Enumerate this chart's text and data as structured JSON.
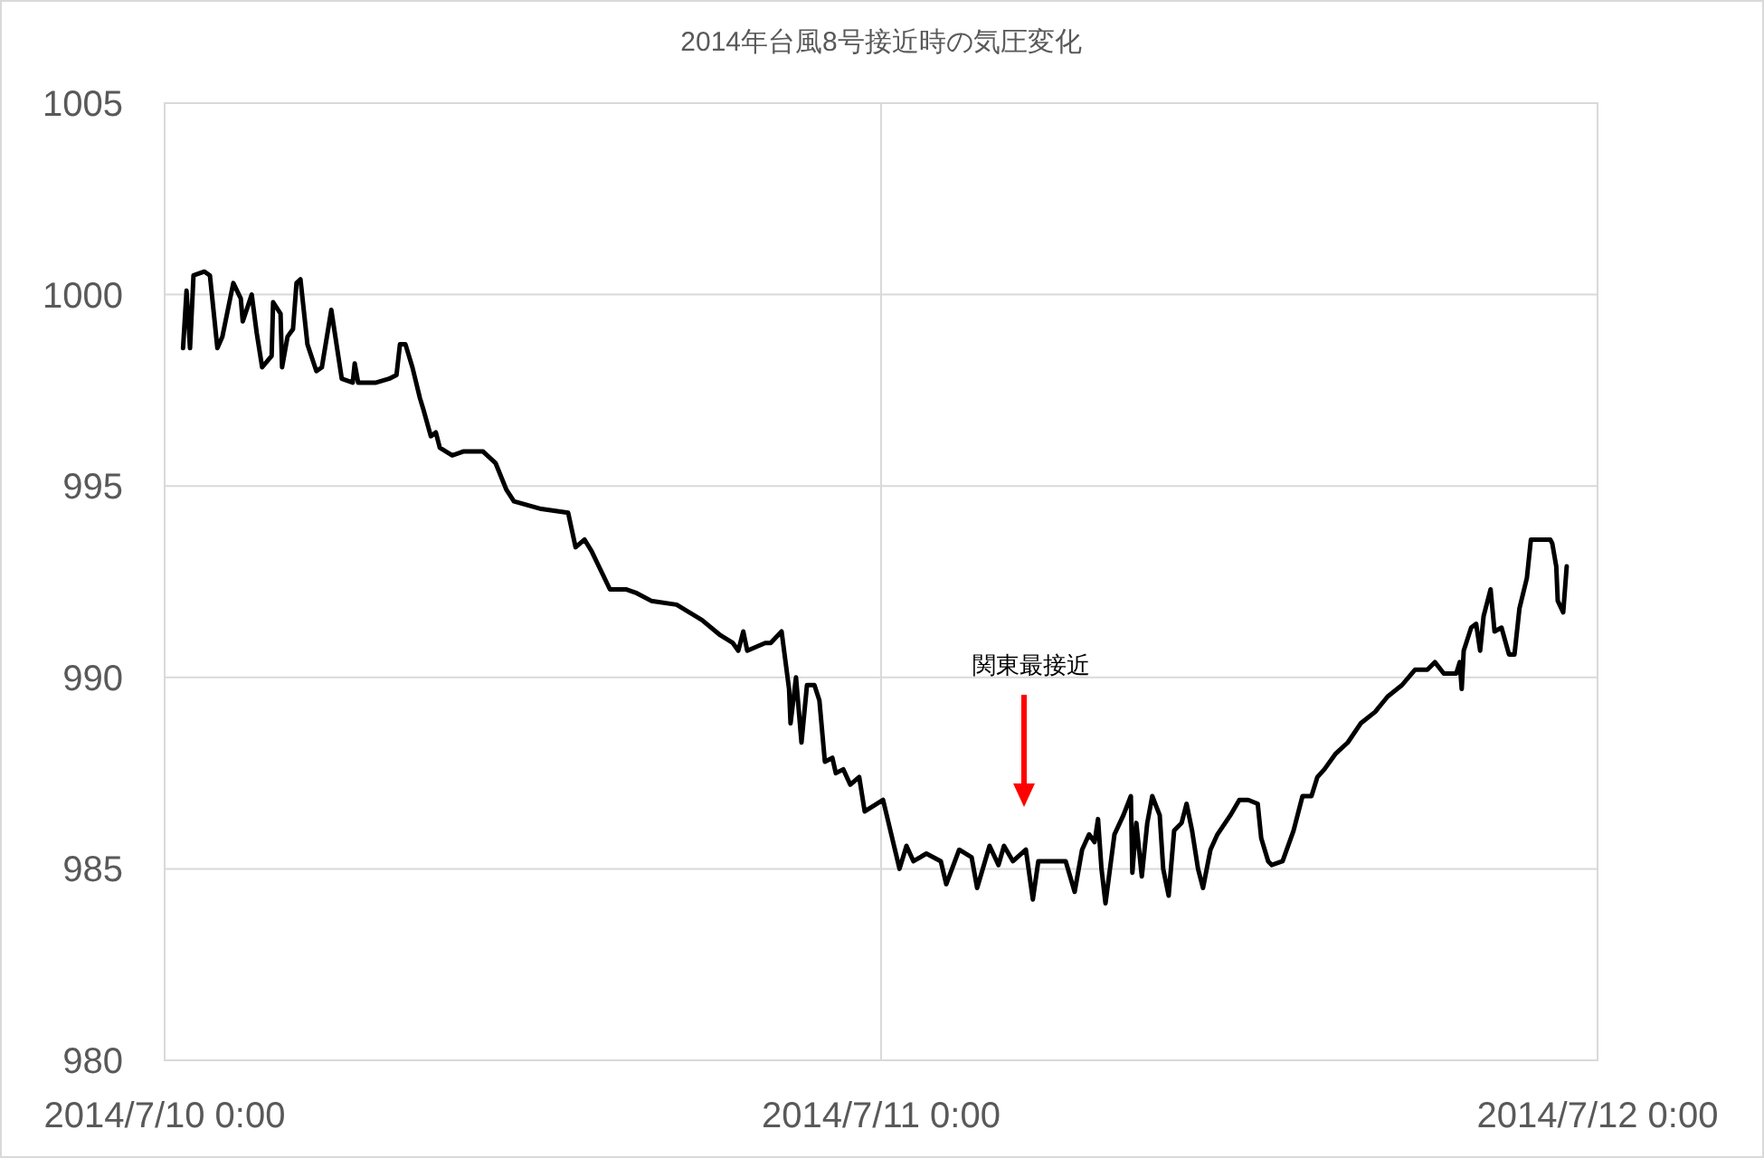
{
  "chart_data": {
    "type": "line",
    "title": "2014年台風8号接近時の気圧変化",
    "xlim": [
      "2014-07-10T00:00",
      "2014-07-12T00:00"
    ],
    "xticks": [
      {
        "value": "2014-07-10T00:00",
        "label": "2014/7/10 0:00"
      },
      {
        "value": "2014-07-11T00:00",
        "label": "2014/7/11 0:00"
      },
      {
        "value": "2014-07-12T00:00",
        "label": "2014/7/12 0:00"
      }
    ],
    "ylim": [
      980,
      1005
    ],
    "yticks": [
      980,
      985,
      990,
      995,
      1000,
      1005
    ],
    "grid": true,
    "marker": "none",
    "line_style": "solid",
    "annotations": [
      "関東最接近"
    ],
    "series": [
      {
        "color": "#000000",
        "x": [
          "2014-07-10T00:37",
          "2014-07-10T00:44",
          "2014-07-10T00:51",
          "2014-07-10T00:58",
          "2014-07-10T01:20",
          "2014-07-10T01:31",
          "2014-07-10T01:46",
          "2014-07-10T01:56",
          "2014-07-10T02:18",
          "2014-07-10T02:33",
          "2014-07-10T02:37",
          "2014-07-10T02:55",
          "2014-07-10T03:05",
          "2014-07-10T03:16",
          "2014-07-10T03:35",
          "2014-07-10T03:38",
          "2014-07-10T03:53",
          "2014-07-10T03:56",
          "2014-07-10T04:07",
          "2014-07-10T04:18",
          "2014-07-10T04:25",
          "2014-07-10T04:33",
          "2014-07-10T04:47",
          "2014-07-10T05:05",
          "2014-07-10T05:16",
          "2014-07-10T05:35",
          "2014-07-10T05:49",
          "2014-07-10T05:56",
          "2014-07-10T06:18",
          "2014-07-10T06:22",
          "2014-07-10T06:29",
          "2014-07-10T07:05",
          "2014-07-10T07:31",
          "2014-07-10T07:46",
          "2014-07-10T07:53",
          "2014-07-10T08:04",
          "2014-07-10T08:18",
          "2014-07-10T08:33",
          "2014-07-10T08:40",
          "2014-07-10T08:55",
          "2014-07-10T09:05",
          "2014-07-10T09:13",
          "2014-07-10T09:38",
          "2014-07-10T10:00",
          "2014-07-10T10:40",
          "2014-07-10T11:05",
          "2014-07-10T11:27",
          "2014-07-10T11:42",
          "2014-07-10T12:37",
          "2014-07-10T13:31",
          "2014-07-10T13:46",
          "2014-07-10T14:04",
          "2014-07-10T14:18",
          "2014-07-10T14:55",
          "2014-07-10T15:27",
          "2014-07-10T15:49",
          "2014-07-10T16:18",
          "2014-07-10T17:09",
          "2014-07-10T18:00",
          "2014-07-10T18:37",
          "2014-07-10T19:02",
          "2014-07-10T19:13",
          "2014-07-10T19:23",
          "2014-07-10T19:31",
          "2014-07-10T20:07",
          "2014-07-10T20:18",
          "2014-07-10T20:40",
          "2014-07-10T20:55",
          "2014-07-10T20:58",
          "2014-07-10T21:09",
          "2014-07-10T21:20",
          "2014-07-10T21:31",
          "2014-07-10T21:46",
          "2014-07-10T21:56",
          "2014-07-10T22:07",
          "2014-07-10T22:22",
          "2014-07-10T22:29",
          "2014-07-10T22:44",
          "2014-07-10T22:58",
          "2014-07-10T23:16",
          "2014-07-10T23:27",
          "2014-07-11T00:04",
          "2014-07-11T00:37",
          "2014-07-11T00:51",
          "2014-07-11T01:05",
          "2014-07-11T01:31",
          "2014-07-11T02:00",
          "2014-07-11T02:11",
          "2014-07-11T02:37",
          "2014-07-11T03:02",
          "2014-07-11T03:13",
          "2014-07-11T03:38",
          "2014-07-11T03:56",
          "2014-07-11T04:07",
          "2014-07-11T04:25",
          "2014-07-11T04:51",
          "2014-07-11T05:05",
          "2014-07-11T05:16",
          "2014-07-11T05:53",
          "2014-07-11T06:11",
          "2014-07-11T06:29",
          "2014-07-11T06:44",
          "2014-07-11T06:58",
          "2014-07-11T07:09",
          "2014-07-11T07:16",
          "2014-07-11T07:23",
          "2014-07-11T07:31",
          "2014-07-11T07:49",
          "2014-07-11T08:07",
          "2014-07-11T08:22",
          "2014-07-11T08:25",
          "2014-07-11T08:33",
          "2014-07-11T08:44",
          "2014-07-11T08:55",
          "2014-07-11T09:05",
          "2014-07-11T09:20",
          "2014-07-11T09:27",
          "2014-07-11T09:38",
          "2014-07-11T09:49",
          "2014-07-11T10:04",
          "2014-07-11T10:14",
          "2014-07-11T10:25",
          "2014-07-11T10:37",
          "2014-07-11T10:47",
          "2014-07-11T11:02",
          "2014-07-11T11:16",
          "2014-07-11T11:42",
          "2014-07-11T12:00",
          "2014-07-11T12:18",
          "2014-07-11T12:37",
          "2014-07-11T12:44",
          "2014-07-11T12:58",
          "2014-07-11T13:05",
          "2014-07-11T13:27",
          "2014-07-11T13:49",
          "2014-07-11T14:07",
          "2014-07-11T14:25",
          "2014-07-11T14:37",
          "2014-07-11T14:51",
          "2014-07-11T15:13",
          "2014-07-11T15:38",
          "2014-07-11T16:04",
          "2014-07-11T16:33",
          "2014-07-11T16:58",
          "2014-07-11T17:27",
          "2014-07-11T17:53",
          "2014-07-11T18:18",
          "2014-07-11T18:33",
          "2014-07-11T18:51",
          "2014-07-11T19:16",
          "2014-07-11T19:23",
          "2014-07-11T19:27",
          "2014-07-11T19:31",
          "2014-07-11T19:46",
          "2014-07-11T19:56",
          "2014-07-11T20:04",
          "2014-07-11T20:11",
          "2014-07-11T20:25",
          "2014-07-11T20:33",
          "2014-07-11T20:47",
          "2014-07-11T21:02",
          "2014-07-11T21:13",
          "2014-07-11T21:23",
          "2014-07-11T21:38",
          "2014-07-11T21:46",
          "2014-07-11T22:25",
          "2014-07-11T22:29",
          "2014-07-11T22:37",
          "2014-07-11T22:40",
          "2014-07-11T22:51",
          "2014-07-11T22:58"
        ],
        "values": [
          998.6,
          1000.1,
          998.6,
          1000.5,
          1000.6,
          1000.5,
          998.6,
          998.9,
          1000.3,
          999.9,
          999.3,
          1000.0,
          999.0,
          998.1,
          998.4,
          999.8,
          999.5,
          998.1,
          998.9,
          999.1,
          1000.3,
          1000.4,
          998.7,
          998.0,
          998.1,
          999.6,
          998.4,
          997.8,
          997.7,
          998.2,
          997.7,
          997.7,
          997.8,
          997.9,
          998.7,
          998.7,
          998.1,
          997.3,
          997.0,
          996.3,
          996.4,
          996.0,
          995.8,
          995.9,
          995.9,
          995.6,
          994.9,
          994.6,
          994.4,
          994.3,
          993.4,
          993.6,
          993.3,
          992.3,
          992.3,
          992.2,
          992.0,
          991.9,
          991.5,
          991.1,
          990.9,
          990.7,
          991.2,
          990.7,
          990.9,
          990.9,
          991.2,
          989.7,
          988.8,
          990.0,
          988.3,
          989.8,
          989.8,
          989.4,
          987.8,
          987.9,
          987.5,
          987.6,
          987.2,
          987.4,
          986.5,
          986.8,
          985.0,
          985.6,
          985.2,
          985.4,
          985.2,
          984.6,
          985.5,
          985.3,
          984.5,
          985.6,
          985.1,
          985.6,
          985.2,
          985.5,
          984.2,
          985.2,
          985.2,
          985.2,
          984.4,
          985.5,
          985.9,
          985.7,
          986.3,
          985.0,
          984.1,
          985.9,
          986.4,
          986.9,
          984.9,
          986.2,
          984.8,
          986.2,
          986.9,
          986.4,
          985.0,
          984.3,
          986.0,
          986.2,
          986.7,
          986.0,
          985.0,
          984.5,
          985.5,
          985.9,
          986.4,
          986.8,
          986.8,
          986.7,
          985.8,
          985.2,
          985.1,
          985.2,
          986.0,
          986.9,
          986.9,
          987.4,
          987.6,
          988.0,
          988.3,
          988.8,
          989.1,
          989.5,
          989.8,
          990.2,
          990.2,
          990.4,
          990.1,
          990.1,
          990.4,
          989.7,
          990.7,
          991.3,
          991.4,
          990.7,
          991.6,
          992.3,
          991.2,
          991.3,
          990.6,
          990.6,
          991.8,
          992.6,
          993.6,
          993.6,
          993.5,
          992.9,
          992.0,
          991.7,
          992.9
        ]
      }
    ]
  }
}
